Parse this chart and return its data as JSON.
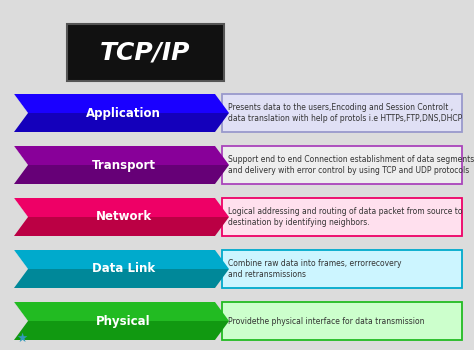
{
  "title": "TCP/IP",
  "background_color": "#dcdcdc",
  "layers": [
    {
      "name": "Application",
      "color": "#1a00ff",
      "dark_color": "#1400bb",
      "desc": "Presents data to the users,Encoding and Session Controlt ,\ndata translation with help of protols i.e HTTPs,FTP,DNS,DHCP",
      "desc_bg": "#e0e0f5",
      "desc_border": "#9999cc"
    },
    {
      "name": "Transport",
      "color": "#880099",
      "dark_color": "#660077",
      "desc": "Support end to end Connection establishment of data segments\nand delivery with error control by using TCP and UDP protocols",
      "desc_bg": "#eeeeee",
      "desc_border": "#aa44bb"
    },
    {
      "name": "Network",
      "color": "#ee0066",
      "dark_color": "#bb0044",
      "desc": "Logical addressing and routing of data packet from source to\ndestination by identifying neighbors.",
      "desc_bg": "#ffe0ee",
      "desc_border": "#ee0066"
    },
    {
      "name": "Data Link",
      "color": "#00aacc",
      "dark_color": "#008899",
      "desc": "Combine raw data into frames, errorrecovery\nand retransmissions",
      "desc_bg": "#ccf5ff",
      "desc_border": "#00aacc"
    },
    {
      "name": "Physical",
      "color": "#22bb22",
      "dark_color": "#119911",
      "desc": "Providethe physical interface for data transmission",
      "desc_bg": "#ccffcc",
      "desc_border": "#22bb22"
    }
  ],
  "title_box_color": "#111111",
  "title_text_color": "#ffffff",
  "desc_text_color": "#333333",
  "icon_color": "#3399bb"
}
